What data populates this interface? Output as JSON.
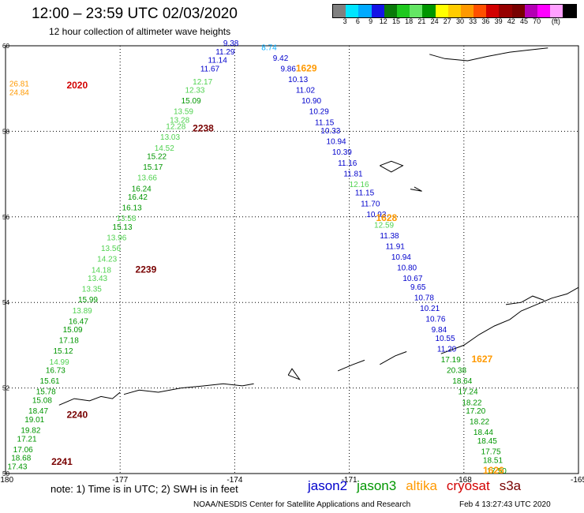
{
  "title": "12:00 – 23:59 UTC 02/03/2020",
  "subtitle": "12 hour collection of altimeter wave heights",
  "colorbar": {
    "colors": [
      "#808080",
      "#00e5ff",
      "#00aaff",
      "#1414e6",
      "#0a7a0a",
      "#1ec81e",
      "#64e664",
      "#009600",
      "#ffff00",
      "#ffcc00",
      "#ff9900",
      "#ff5000",
      "#d20000",
      "#960000",
      "#780000",
      "#b400b4",
      "#ff00ff",
      "#ffa0ff",
      "#000000"
    ],
    "labels": [
      "3",
      "6",
      "9",
      "12",
      "15",
      "18",
      "21",
      "24",
      "27",
      "30",
      "33",
      "36",
      "39",
      "42",
      "45",
      "70",
      "(ft)"
    ]
  },
  "axes": {
    "lon_ticks": [
      "-180",
      "-177",
      "-174",
      "-171",
      "-168",
      "-165"
    ],
    "lat_ticks": [
      "60",
      "58",
      "56",
      "54",
      "52",
      "50"
    ]
  },
  "colors": {
    "jason2": "#0000cc",
    "jason3": "#009600",
    "jason3_light": "#50d250",
    "altika": "#ff9900",
    "cryosat": "#d20000",
    "s3a": "#780000"
  },
  "track_labels": [
    {
      "text": "2020",
      "lon": -178.4,
      "lat": 59.0,
      "sat": "cryosat"
    },
    {
      "text": "2238",
      "lon": -175.1,
      "lat": 58.0,
      "sat": "s3a"
    },
    {
      "text": "1629",
      "lon": -172.4,
      "lat": 59.4,
      "sat": "altika"
    },
    {
      "text": "1628",
      "lon": -170.3,
      "lat": 55.9,
      "sat": "altika"
    },
    {
      "text": "2239",
      "lon": -176.6,
      "lat": 54.7,
      "sat": "s3a"
    },
    {
      "text": "1627",
      "lon": -167.8,
      "lat": 52.6,
      "sat": "altika"
    },
    {
      "text": "2240",
      "lon": -178.4,
      "lat": 51.3,
      "sat": "s3a"
    },
    {
      "text": "2241",
      "lon": -178.8,
      "lat": 50.2,
      "sat": "s3a"
    },
    {
      "text": "1626",
      "lon": -167.5,
      "lat": 50.0,
      "sat": "altika"
    }
  ],
  "wave_heights": [
    {
      "v": "26.81",
      "lon": -179.9,
      "lat": 59.05,
      "c": "altika"
    },
    {
      "v": "24.84",
      "lon": -179.9,
      "lat": 58.85,
      "c": "altika"
    },
    {
      "v": "9.38",
      "lon": -174.3,
      "lat": 60.0,
      "c": "jason2"
    },
    {
      "v": "11.29",
      "lon": -174.5,
      "lat": 59.8,
      "c": "jason2"
    },
    {
      "v": "11.14",
      "lon": -174.7,
      "lat": 59.6,
      "c": "jason2"
    },
    {
      "v": "11.67",
      "lon": -174.9,
      "lat": 59.4,
      "c": "jason2"
    },
    {
      "v": "12.17",
      "lon": -175.1,
      "lat": 59.1,
      "c": "jason3_light"
    },
    {
      "v": "12.33",
      "lon": -175.3,
      "lat": 58.9,
      "c": "jason3_light"
    },
    {
      "v": "15.09",
      "lon": -175.4,
      "lat": 58.65,
      "c": "jason3"
    },
    {
      "v": "13.59",
      "lon": -175.6,
      "lat": 58.4,
      "c": "jason3_light"
    },
    {
      "v": "13.28",
      "lon": -175.7,
      "lat": 58.2,
      "c": "jason3_light"
    },
    {
      "v": "12.28",
      "lon": -175.8,
      "lat": 58.05,
      "c": "jason3_light"
    },
    {
      "v": "13.03",
      "lon": -175.95,
      "lat": 57.8,
      "c": "jason3_light"
    },
    {
      "v": "14.52",
      "lon": -176.1,
      "lat": 57.55,
      "c": "jason3_light"
    },
    {
      "v": "15.22",
      "lon": -176.3,
      "lat": 57.35,
      "c": "jason3"
    },
    {
      "v": "15.17",
      "lon": -176.4,
      "lat": 57.1,
      "c": "jason3"
    },
    {
      "v": "13.66",
      "lon": -176.55,
      "lat": 56.85,
      "c": "jason3_light"
    },
    {
      "v": "16.24",
      "lon": -176.7,
      "lat": 56.6,
      "c": "jason3"
    },
    {
      "v": "16.42",
      "lon": -176.8,
      "lat": 56.4,
      "c": "jason3"
    },
    {
      "v": "16.13",
      "lon": -176.95,
      "lat": 56.15,
      "c": "jason3"
    },
    {
      "v": "13.58",
      "lon": -177.1,
      "lat": 55.9,
      "c": "jason3_light"
    },
    {
      "v": "15.13",
      "lon": -177.2,
      "lat": 55.7,
      "c": "jason3"
    },
    {
      "v": "13.96",
      "lon": -177.35,
      "lat": 55.45,
      "c": "jason3_light"
    },
    {
      "v": "13.56",
      "lon": -177.5,
      "lat": 55.2,
      "c": "jason3_light"
    },
    {
      "v": "14.23",
      "lon": -177.6,
      "lat": 54.95,
      "c": "jason3_light"
    },
    {
      "v": "14.18",
      "lon": -177.75,
      "lat": 54.7,
      "c": "jason3_light"
    },
    {
      "v": "13.43",
      "lon": -177.85,
      "lat": 54.5,
      "c": "jason3_light"
    },
    {
      "v": "13.35",
      "lon": -178.0,
      "lat": 54.25,
      "c": "jason3_light"
    },
    {
      "v": "15.99",
      "lon": -178.1,
      "lat": 54.0,
      "c": "jason3"
    },
    {
      "v": "13.89",
      "lon": -178.25,
      "lat": 53.75,
      "c": "jason3_light"
    },
    {
      "v": "16.47",
      "lon": -178.35,
      "lat": 53.5,
      "c": "jason3"
    },
    {
      "v": "15.09",
      "lon": -178.5,
      "lat": 53.3,
      "c": "jason3"
    },
    {
      "v": "17.18",
      "lon": -178.6,
      "lat": 53.05,
      "c": "jason3"
    },
    {
      "v": "15.12",
      "lon": -178.75,
      "lat": 52.8,
      "c": "jason3"
    },
    {
      "v": "14.99",
      "lon": -178.85,
      "lat": 52.55,
      "c": "jason3_light"
    },
    {
      "v": "16.73",
      "lon": -178.95,
      "lat": 52.35,
      "c": "jason3"
    },
    {
      "v": "15.61",
      "lon": -179.1,
      "lat": 52.1,
      "c": "jason3"
    },
    {
      "v": "15.78",
      "lon": -179.2,
      "lat": 51.85,
      "c": "jason3"
    },
    {
      "v": "15.08",
      "lon": -179.3,
      "lat": 51.65,
      "c": "jason3"
    },
    {
      "v": "18.47",
      "lon": -179.4,
      "lat": 51.4,
      "c": "jason3"
    },
    {
      "v": "19.01",
      "lon": -179.5,
      "lat": 51.2,
      "c": "jason3"
    },
    {
      "v": "19.82",
      "lon": -179.6,
      "lat": 50.95,
      "c": "jason3"
    },
    {
      "v": "17.21",
      "lon": -179.7,
      "lat": 50.75,
      "c": "jason3"
    },
    {
      "v": "17.06",
      "lon": -179.8,
      "lat": 50.5,
      "c": "jason3"
    },
    {
      "v": "18.68",
      "lon": -179.85,
      "lat": 50.3,
      "c": "jason3"
    },
    {
      "v": "17.43",
      "lon": -179.95,
      "lat": 50.1,
      "c": "jason3"
    },
    {
      "v": "8.74",
      "lon": -173.3,
      "lat": 59.9,
      "c": "jason2_light"
    },
    {
      "v": "9.42",
      "lon": -173.0,
      "lat": 59.65,
      "c": "jason2"
    },
    {
      "v": "9.86",
      "lon": -172.8,
      "lat": 59.4,
      "c": "jason2"
    },
    {
      "v": "10.13",
      "lon": -172.6,
      "lat": 59.15,
      "c": "jason2"
    },
    {
      "v": "11.02",
      "lon": -172.4,
      "lat": 58.9,
      "c": "jason2"
    },
    {
      "v": "10.90",
      "lon": -172.25,
      "lat": 58.65,
      "c": "jason2"
    },
    {
      "v": "10.29",
      "lon": -172.05,
      "lat": 58.4,
      "c": "jason2"
    },
    {
      "v": "11.15",
      "lon": -171.9,
      "lat": 58.15,
      "c": "jason2"
    },
    {
      "v": "10.33",
      "lon": -171.75,
      "lat": 57.95,
      "c": "jason2"
    },
    {
      "v": "10.94",
      "lon": -171.6,
      "lat": 57.7,
      "c": "jason2"
    },
    {
      "v": "10.39",
      "lon": -171.45,
      "lat": 57.45,
      "c": "jason2"
    },
    {
      "v": "11.16",
      "lon": -171.3,
      "lat": 57.2,
      "c": "jason2"
    },
    {
      "v": "11.81",
      "lon": -171.15,
      "lat": 56.95,
      "c": "jason2"
    },
    {
      "v": "12.16",
      "lon": -171.0,
      "lat": 56.7,
      "c": "jason3_light"
    },
    {
      "v": "11.15",
      "lon": -170.85,
      "lat": 56.5,
      "c": "jason2"
    },
    {
      "v": "11.70",
      "lon": -170.7,
      "lat": 56.25,
      "c": "jason2"
    },
    {
      "v": "10.93",
      "lon": -170.55,
      "lat": 56.0,
      "c": "jason2"
    },
    {
      "v": "12.59",
      "lon": -170.35,
      "lat": 55.75,
      "c": "jason3_light"
    },
    {
      "v": "11.38",
      "lon": -170.2,
      "lat": 55.5,
      "c": "jason2"
    },
    {
      "v": "11.91",
      "lon": -170.05,
      "lat": 55.25,
      "c": "jason2"
    },
    {
      "v": "10.94",
      "lon": -169.9,
      "lat": 55.0,
      "c": "jason2"
    },
    {
      "v": "10.80",
      "lon": -169.75,
      "lat": 54.75,
      "c": "jason2"
    },
    {
      "v": "10.67",
      "lon": -169.6,
      "lat": 54.5,
      "c": "jason2"
    },
    {
      "v": "9.65",
      "lon": -169.4,
      "lat": 54.3,
      "c": "jason2"
    },
    {
      "v": "10.78",
      "lon": -169.3,
      "lat": 54.05,
      "c": "jason2"
    },
    {
      "v": "10.21",
      "lon": -169.15,
      "lat": 53.8,
      "c": "jason2"
    },
    {
      "v": "10.76",
      "lon": -169.0,
      "lat": 53.55,
      "c": "jason2"
    },
    {
      "v": "9.84",
      "lon": -168.85,
      "lat": 53.3,
      "c": "jason2"
    },
    {
      "v": "10.55",
      "lon": -168.75,
      "lat": 53.1,
      "c": "jason2"
    },
    {
      "v": "11.20",
      "lon": -168.7,
      "lat": 52.85,
      "c": "jason2"
    },
    {
      "v": "17.19",
      "lon": -168.6,
      "lat": 52.6,
      "c": "jason3"
    },
    {
      "v": "20.38",
      "lon": -168.45,
      "lat": 52.35,
      "c": "jason3"
    },
    {
      "v": "18.64",
      "lon": -168.3,
      "lat": 52.1,
      "c": "jason3"
    },
    {
      "v": "17.24",
      "lon": -168.15,
      "lat": 51.85,
      "c": "jason3"
    },
    {
      "v": "18.22",
      "lon": -168.05,
      "lat": 51.6,
      "c": "jason3"
    },
    {
      "v": "17.20",
      "lon": -167.95,
      "lat": 51.4,
      "c": "jason3"
    },
    {
      "v": "18.22",
      "lon": -167.85,
      "lat": 51.15,
      "c": "jason3"
    },
    {
      "v": "18.44",
      "lon": -167.75,
      "lat": 50.9,
      "c": "jason3"
    },
    {
      "v": "18.45",
      "lon": -167.65,
      "lat": 50.7,
      "c": "jason3"
    },
    {
      "v": "17.75",
      "lon": -167.55,
      "lat": 50.45,
      "c": "jason3"
    },
    {
      "v": "18.51",
      "lon": -167.5,
      "lat": 50.25,
      "c": "jason3"
    },
    {
      "v": "17.50",
      "lon": -167.4,
      "lat": 50.0,
      "c": "jason3"
    }
  ],
  "footnote": "note: 1) Time is in UTC; 2) SWH is in feet",
  "legend": [
    {
      "label": "jason2",
      "sat": "jason2"
    },
    {
      "label": "jason3",
      "sat": "jason3"
    },
    {
      "label": "altika",
      "sat": "altika"
    },
    {
      "label": "cryosat",
      "sat": "cryosat"
    },
    {
      "label": "s3a",
      "sat": "s3a"
    }
  ],
  "credit": "NOAA/NESDIS Center for Satellite Applications and Research",
  "timestamp": "Feb  4 13:27:43 UTC 2020"
}
